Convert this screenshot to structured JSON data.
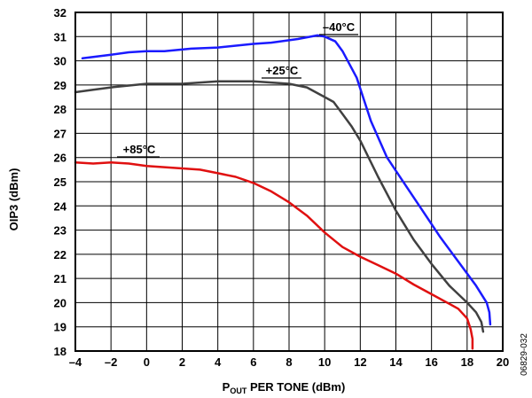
{
  "figure_id": "06829-032",
  "chart_data": {
    "type": "line",
    "xlabel_main": "P",
    "xlabel_sub": "OUT",
    "xlabel_rest": " PER TONE (dBm)",
    "ylabel": "OIP3 (dBm)",
    "xlim": [
      -4,
      20
    ],
    "ylim": [
      18,
      32
    ],
    "x_ticks": [
      -4,
      -2,
      0,
      2,
      4,
      6,
      8,
      10,
      12,
      14,
      16,
      18,
      20
    ],
    "y_ticks": [
      18,
      19,
      20,
      21,
      22,
      23,
      24,
      25,
      26,
      27,
      28,
      29,
      30,
      31,
      32
    ],
    "x_tick_labels": [
      "–4",
      "–2",
      "0",
      "2",
      "4",
      "6",
      "8",
      "10",
      "12",
      "14",
      "16",
      "18",
      "20"
    ],
    "y_tick_labels": [
      "18",
      "19",
      "20",
      "21",
      "22",
      "23",
      "24",
      "25",
      "26",
      "27",
      "28",
      "29",
      "30",
      "31",
      "32"
    ],
    "grid": true,
    "series": [
      {
        "name": "–40°C",
        "color": "#1a1aff",
        "x": [
          -3.6,
          -2.0,
          -1.0,
          0.0,
          1.0,
          2.5,
          4.0,
          6.0,
          7.0,
          8.5,
          9.6,
          10.0,
          10.6,
          11.0,
          11.8,
          12.6,
          13.5,
          14.5,
          15.5,
          16.5,
          17.5,
          18.5,
          19.1,
          19.25,
          19.3
        ],
        "y": [
          30.1,
          30.25,
          30.35,
          30.4,
          30.4,
          30.5,
          30.55,
          30.7,
          30.75,
          30.9,
          31.05,
          31.0,
          30.8,
          30.4,
          29.3,
          27.5,
          26.0,
          24.9,
          23.8,
          22.7,
          21.7,
          20.7,
          20.0,
          19.6,
          19.1
        ]
      },
      {
        "name": "+25°C",
        "color": "#404040",
        "x": [
          -4.0,
          -3.0,
          -2.0,
          0.0,
          2.0,
          3.0,
          4.0,
          5.0,
          6.0,
          7.0,
          8.0,
          9.0,
          10.0,
          10.5,
          11.0,
          11.5,
          12.0,
          13.0,
          14.0,
          15.0,
          16.0,
          17.0,
          18.0,
          18.5,
          18.8,
          18.9
        ],
        "y": [
          28.7,
          28.8,
          28.9,
          29.05,
          29.05,
          29.1,
          29.15,
          29.15,
          29.15,
          29.1,
          29.05,
          28.9,
          28.5,
          28.3,
          27.8,
          27.3,
          26.7,
          25.2,
          23.8,
          22.6,
          21.6,
          20.7,
          20.0,
          19.6,
          19.2,
          18.8
        ]
      },
      {
        "name": "+85°C",
        "color": "#e01010",
        "x": [
          -4.0,
          -3.0,
          -2.0,
          -1.0,
          0.0,
          1.0,
          2.0,
          3.0,
          4.0,
          5.0,
          6.0,
          7.0,
          8.0,
          9.0,
          10.0,
          11.0,
          12.0,
          13.0,
          14.0,
          15.0,
          16.0,
          17.0,
          17.5,
          18.0,
          18.2,
          18.3,
          18.3
        ],
        "y": [
          25.8,
          25.75,
          25.8,
          25.75,
          25.65,
          25.6,
          25.55,
          25.5,
          25.35,
          25.2,
          24.95,
          24.6,
          24.15,
          23.6,
          22.9,
          22.3,
          21.9,
          21.55,
          21.2,
          20.75,
          20.35,
          19.95,
          19.75,
          19.35,
          18.9,
          18.5,
          18.1
        ]
      }
    ],
    "annotations": [
      {
        "text": "–40°C",
        "series": 0
      },
      {
        "text": "+25°C",
        "series": 1
      },
      {
        "text": "+85°C",
        "series": 2
      }
    ]
  }
}
